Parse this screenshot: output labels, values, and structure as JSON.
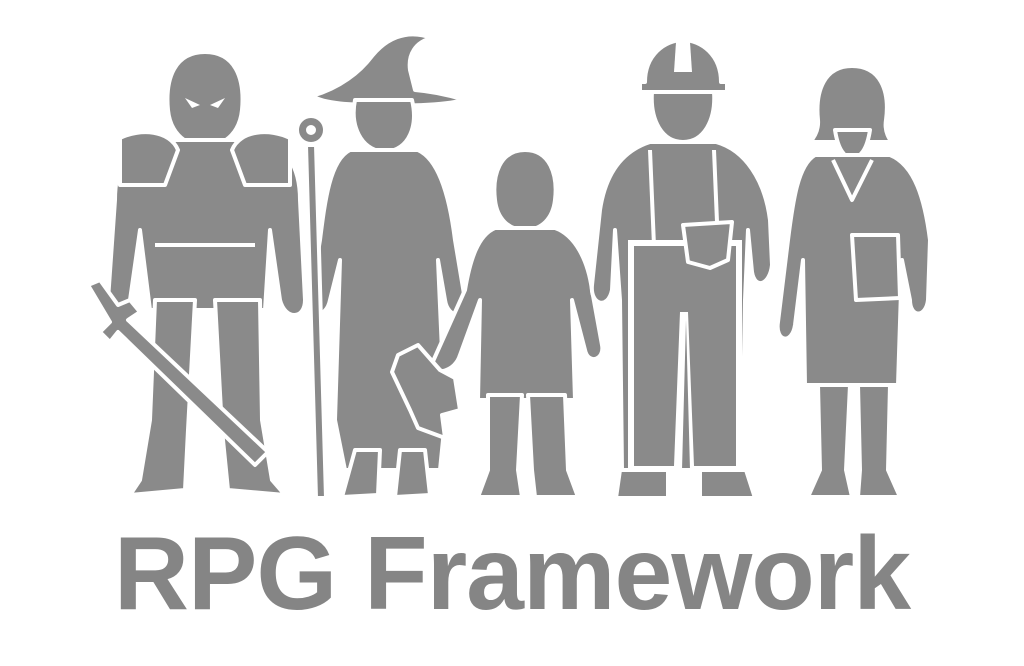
{
  "logo": {
    "title": "RPG Framework",
    "color": "#8a8a8a",
    "figures": [
      "knight-icon",
      "wizard-icon",
      "child-icon",
      "construction-worker-icon",
      "office-worker-icon"
    ]
  }
}
